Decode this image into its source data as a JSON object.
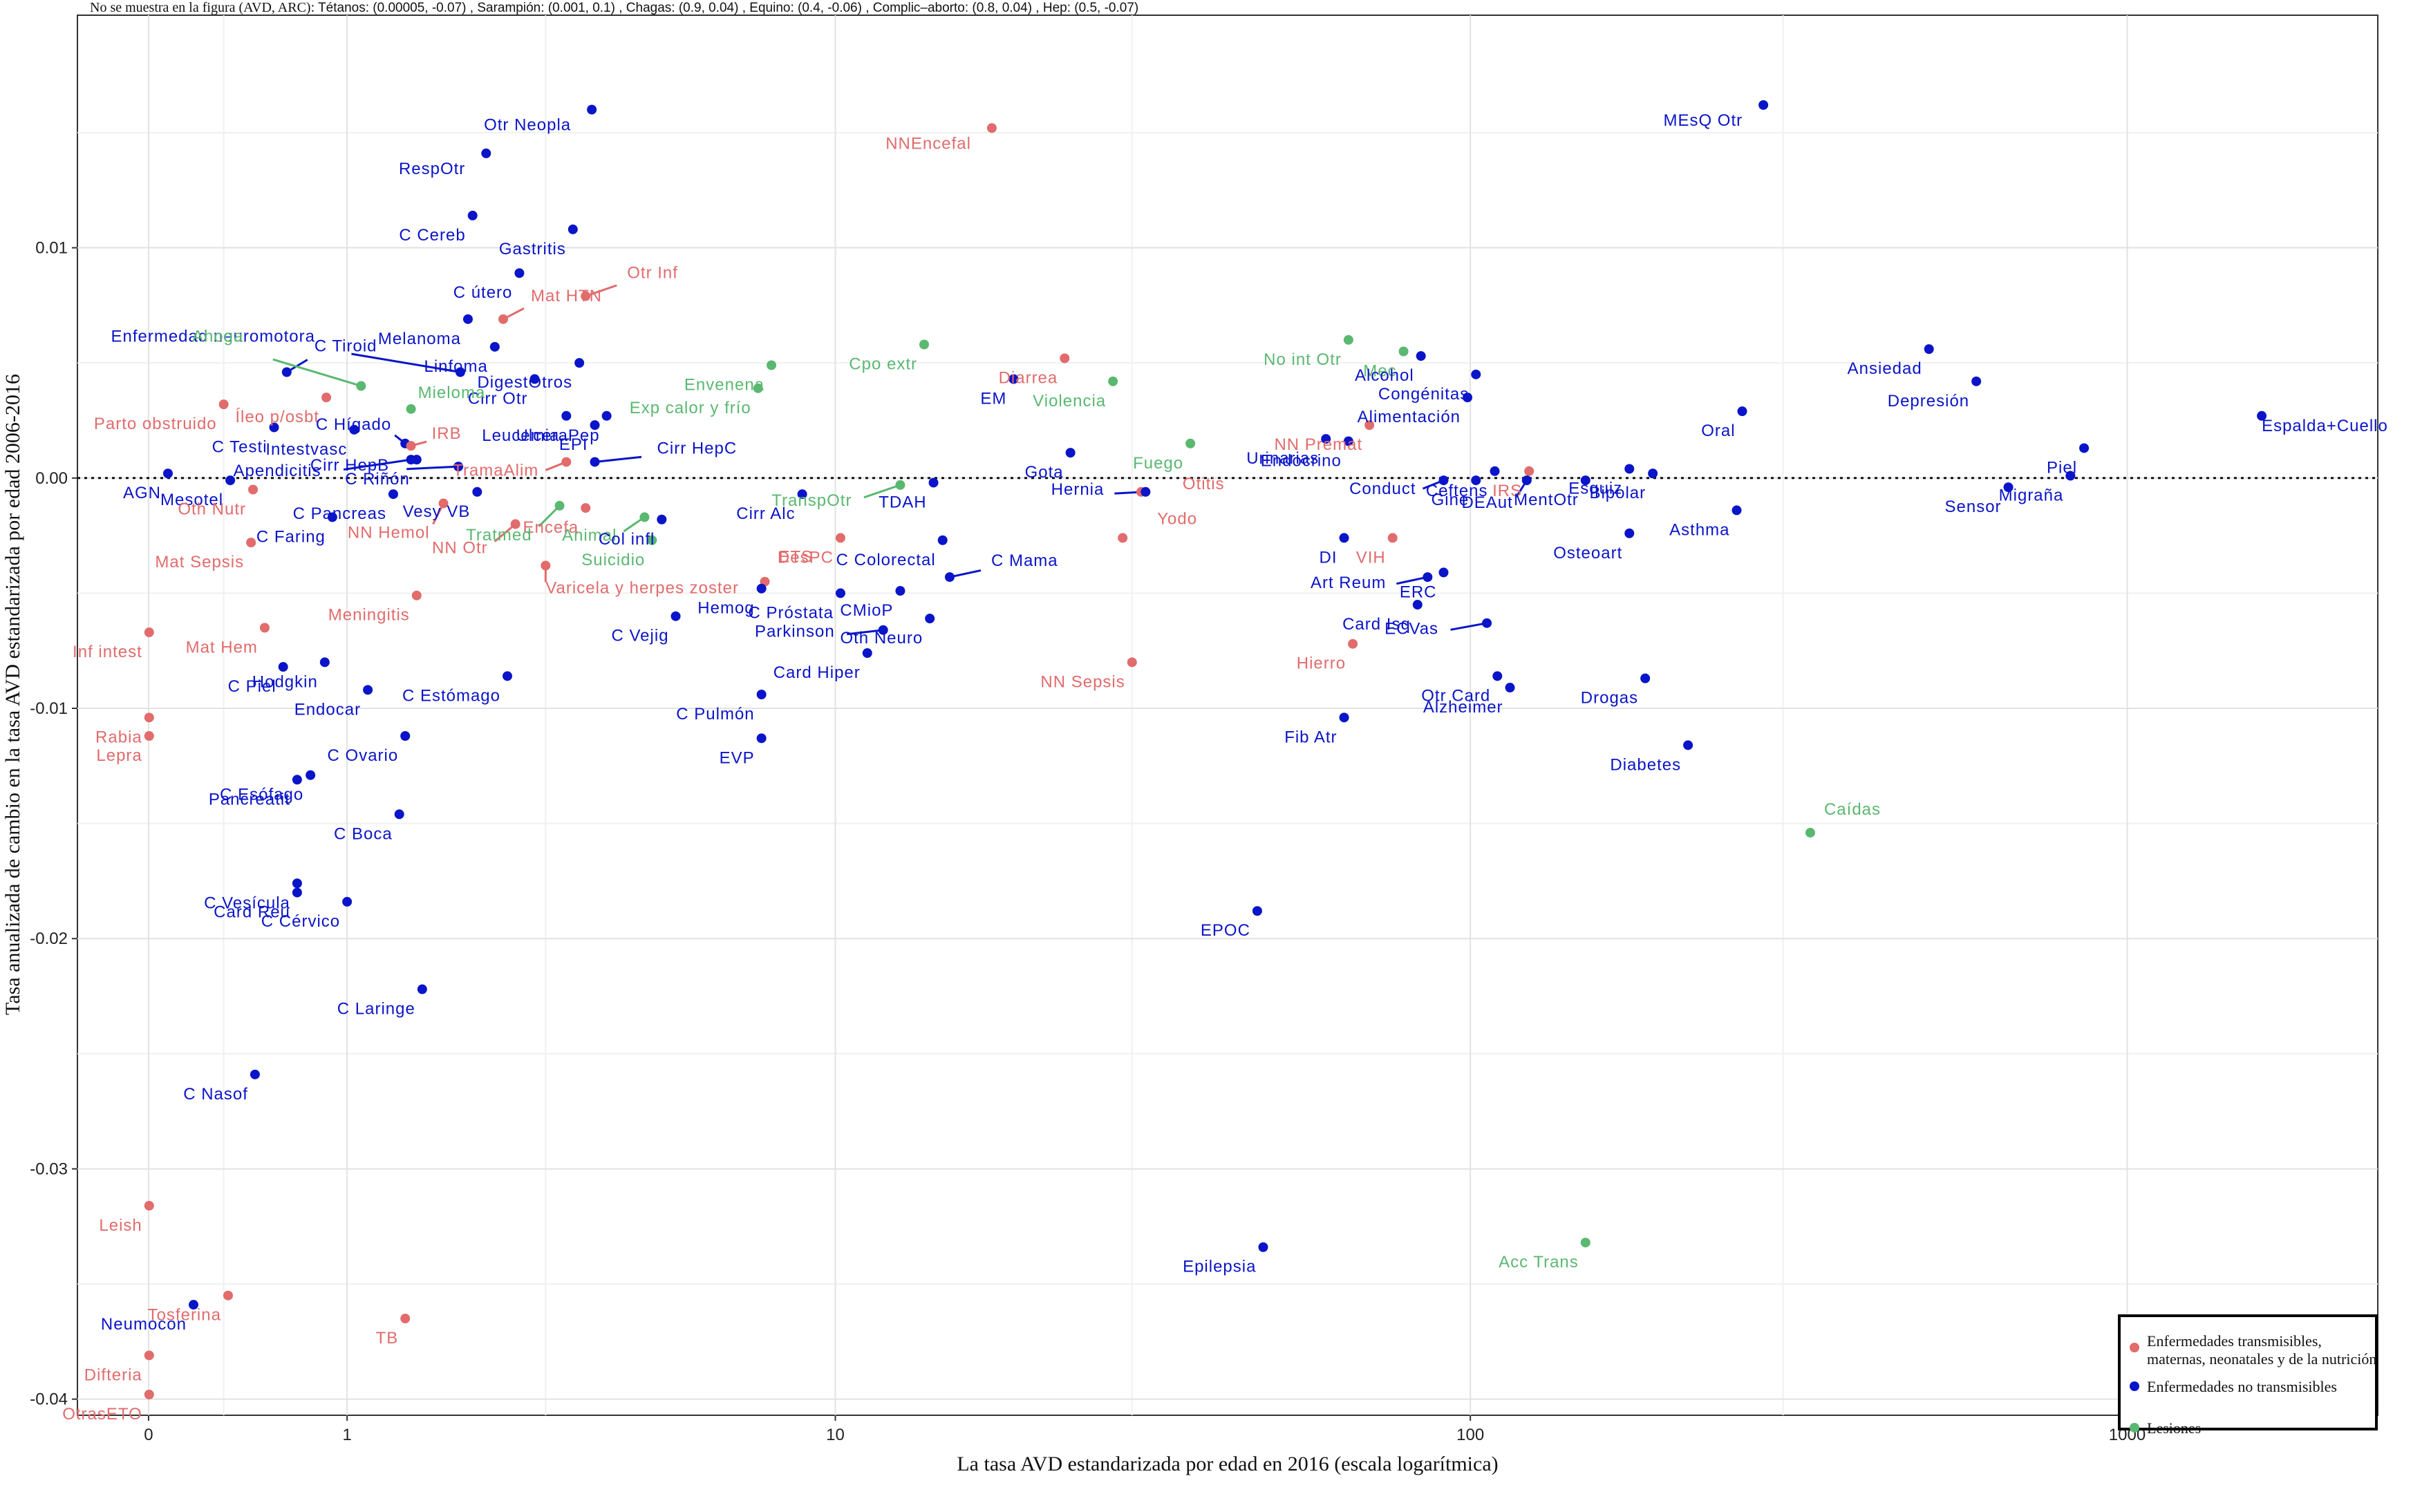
{
  "note": {
    "lead": "No se muestra en la figura (AVD, ARC):",
    "items": [
      "Tétanos: (0.00005, -0.07)",
      "Sarampión: (0.001, 0.1)",
      "Chagas: (0.9, 0.04)",
      "Equino: (0.4, -0.06)",
      "Complic–aborto: (0.8, 0.04)",
      "Hep: (0.5, -0.07)"
    ]
  },
  "colors": {
    "communicable": "#e26b6b",
    "noncommunicable": "#0a14c8",
    "injuries": "#5ab870"
  },
  "chart_data": {
    "type": "scatter",
    "xlabel": "La tasa AVD estandarizada por edad en 2016 (escala logarítmica)",
    "ylabel": "Tasa anualizada de cambio en la tasa AVD estandarizada por edad 2006-2016",
    "x_scale": "log1p",
    "x_ticks": [
      0,
      1,
      10,
      100,
      1000
    ],
    "x_tick_labels": [
      "0",
      "1",
      "10",
      "100",
      "1000"
    ],
    "xlim": [
      -0.22,
      2400
    ],
    "y_ticks": [
      -0.04,
      -0.03,
      -0.02,
      -0.01,
      0.0,
      0.01
    ],
    "y_tick_labels": [
      "-0.04",
      "-0.03",
      "-0.02",
      "-0.01",
      "0.00",
      "0.01"
    ],
    "ylim": [
      -0.0407,
      0.0201
    ],
    "reference_line": {
      "y": 0,
      "style": "dotted"
    },
    "legend": {
      "position": "bottom-right",
      "entries": [
        {
          "key": "communicable",
          "label_lines": [
            "Enfermedades transmisibles,",
            "maternas, neonatales y de la nutrición"
          ]
        },
        {
          "key": "noncommunicable",
          "label_lines": [
            "Enfermedades no transmisibles"
          ]
        },
        {
          "key": "injuries",
          "label_lines": [
            "Lesiones"
          ]
        }
      ]
    },
    "points": [
      {
        "label": "MEsQ Otr",
        "x": 280,
        "y": 0.0162,
        "g": "noncommunicable"
      },
      {
        "label": "Otr Neopla",
        "x": 3.7,
        "y": 0.016,
        "g": "noncommunicable"
      },
      {
        "label": "NNEncefal",
        "x": 18,
        "y": 0.0152,
        "g": "communicable"
      },
      {
        "label": "RespOtr",
        "x": 2.25,
        "y": 0.0141,
        "g": "noncommunicable"
      },
      {
        "label": "C Cereb",
        "x": 2.1,
        "y": 0.0114,
        "g": "noncommunicable"
      },
      {
        "label": "Gastritis",
        "x": 3.4,
        "y": 0.0108,
        "g": "noncommunicable"
      },
      {
        "label": "C útero",
        "x": 2.65,
        "y": 0.0089,
        "g": "noncommunicable"
      },
      {
        "label": "Otr Inf",
        "x": 3.6,
        "y": 0.0079,
        "g": "communicable"
      },
      {
        "label": "Mat HTN",
        "x": 2.45,
        "y": 0.0069,
        "g": "communicable"
      },
      {
        "label": "Melanoma",
        "x": 2.05,
        "y": 0.0069,
        "g": "noncommunicable"
      },
      {
        "label": "Linfoma",
        "x": 2.35,
        "y": 0.0057,
        "g": "noncommunicable"
      },
      {
        "label": "Cpo extr",
        "x": 14,
        "y": 0.0058,
        "g": "injuries"
      },
      {
        "label": "No int Otr",
        "x": 65,
        "y": 0.006,
        "g": "injuries"
      },
      {
        "label": "Mec",
        "x": 79,
        "y": 0.0055,
        "g": "injuries"
      },
      {
        "label": "Alcohol",
        "x": 84,
        "y": 0.0053,
        "g": "noncommunicable"
      },
      {
        "label": "Ansiedad",
        "x": 500,
        "y": 0.0056,
        "g": "noncommunicable"
      },
      {
        "label": "Diarrea",
        "x": 23.5,
        "y": 0.0052,
        "g": "communicable"
      },
      {
        "label": "DigestOtros",
        "x": 3.5,
        "y": 0.005,
        "g": "noncommunicable"
      },
      {
        "label": "Envenena",
        "x": 7.8,
        "y": 0.0049,
        "g": "injuries"
      },
      {
        "label": "C Tiroid",
        "x": 0.62,
        "y": 0.0046,
        "g": "noncommunicable"
      },
      {
        "label": "Enfermedad neuromotora",
        "x": 1.97,
        "y": 0.0046,
        "g": "noncommunicable"
      },
      {
        "label": "Cirr Otr",
        "x": 2.85,
        "y": 0.0043,
        "g": "noncommunicable"
      },
      {
        "label": "EM",
        "x": 19.5,
        "y": 0.0043,
        "g": "noncommunicable"
      },
      {
        "label": "Violencia",
        "x": 28,
        "y": 0.0042,
        "g": "injuries"
      },
      {
        "label": "Congénitas",
        "x": 102,
        "y": 0.0045,
        "g": "noncommunicable"
      },
      {
        "label": "Depresión",
        "x": 590,
        "y": 0.0042,
        "g": "noncommunicable"
      },
      {
        "label": "Exp calor y frío",
        "x": 7.4,
        "y": 0.0039,
        "g": "injuries"
      },
      {
        "label": "Ahoga",
        "x": 1.1,
        "y": 0.004,
        "g": "injuries"
      },
      {
        "label": "Íleo p/osbt",
        "x": 0.86,
        "y": 0.0035,
        "g": "communicable"
      },
      {
        "label": "Leucemia",
        "x": 3.3,
        "y": 0.0027,
        "g": "noncommunicable"
      },
      {
        "label": "Mieloma",
        "x": 1.5,
        "y": 0.003,
        "g": "injuries"
      },
      {
        "label": "Parto obstruido",
        "x": 0.3,
        "y": 0.0032,
        "g": "communicable"
      },
      {
        "label": "Alimentación",
        "x": 99,
        "y": 0.0035,
        "g": "noncommunicable"
      },
      {
        "label": "Oral",
        "x": 260,
        "y": 0.0029,
        "g": "noncommunicable"
      },
      {
        "label": "NN Premat",
        "x": 70,
        "y": 0.0023,
        "g": "communicable"
      },
      {
        "label": "Espalda+Cuello",
        "x": 1600,
        "y": 0.0027,
        "g": "noncommunicable"
      },
      {
        "label": "UlceraPep",
        "x": 3.95,
        "y": 0.0027,
        "g": "noncommunicable"
      },
      {
        "label": "EPI",
        "x": 3.75,
        "y": 0.0023,
        "g": "noncommunicable"
      },
      {
        "label": "C Testi",
        "x": 0.55,
        "y": 0.0022,
        "g": "noncommunicable"
      },
      {
        "label": "Intestvasc",
        "x": 1.05,
        "y": 0.0021,
        "g": "noncommunicable"
      },
      {
        "label": "C Hígado",
        "x": 1.45,
        "y": 0.0015,
        "g": "noncommunicable"
      },
      {
        "label": "IRB",
        "x": 1.5,
        "y": 0.0014,
        "g": "communicable"
      },
      {
        "label": "Urinarias",
        "x": 60,
        "y": 0.0017,
        "g": "noncommunicable"
      },
      {
        "label": "Endocrino",
        "x": 65,
        "y": 0.0016,
        "g": "noncommunicable"
      },
      {
        "label": "Gota",
        "x": 24,
        "y": 0.0011,
        "g": "noncommunicable"
      },
      {
        "label": "Fuego",
        "x": 37,
        "y": 0.0015,
        "g": "injuries"
      },
      {
        "label": "Piel",
        "x": 860,
        "y": 0.0013,
        "g": "noncommunicable"
      },
      {
        "label": "Migraña",
        "x": 820,
        "y": 0.0001,
        "g": "noncommunicable"
      },
      {
        "label": "Esquiz",
        "x": 175,
        "y": 0.0004,
        "g": "noncommunicable"
      },
      {
        "label": "Bipolar",
        "x": 190,
        "y": 0.0002,
        "g": "noncommunicable"
      },
      {
        "label": "IRS",
        "x": 123,
        "y": 0.0003,
        "g": "communicable"
      },
      {
        "label": "Ceftens",
        "x": 109,
        "y": 0.0003,
        "g": "noncommunicable"
      },
      {
        "label": "C Riñón",
        "x": 1.55,
        "y": 0.0008,
        "g": "noncommunicable"
      },
      {
        "label": "Cirr HepC",
        "x": 3.75,
        "y": 0.0007,
        "g": "noncommunicable"
      },
      {
        "label": "Mesotel",
        "x": 0.33,
        "y": -0.0001,
        "g": "noncommunicable"
      },
      {
        "label": "AGN",
        "x": 0.07,
        "y": 0.0002,
        "g": "noncommunicable"
      },
      {
        "label": "Apendicitis",
        "x": 1.5,
        "y": 0.0008,
        "g": "noncommunicable"
      },
      {
        "label": "Cirr HepB",
        "x": 1.95,
        "y": 0.0005,
        "g": "noncommunicable"
      },
      {
        "label": "TramaAlim",
        "x": 3.3,
        "y": 0.0007,
        "g": "communicable"
      },
      {
        "label": "Cirr Alc",
        "x": 8.8,
        "y": -0.0007,
        "g": "noncommunicable"
      },
      {
        "label": "TDAH",
        "x": 14.5,
        "y": -0.0002,
        "g": "noncommunicable"
      },
      {
        "label": "Otitis",
        "x": 31,
        "y": -0.0006,
        "g": "communicable"
      },
      {
        "label": "Hernia",
        "x": 31.5,
        "y": -0.0006,
        "g": "noncommunicable"
      },
      {
        "label": "Conduct",
        "x": 91,
        "y": -0.0001,
        "g": "noncommunicable"
      },
      {
        "label": "Gine",
        "x": 102,
        "y": -0.0001,
        "g": "noncommunicable"
      },
      {
        "label": "DEAut",
        "x": 122,
        "y": -0.0001,
        "g": "noncommunicable"
      },
      {
        "label": "MentOtr",
        "x": 150,
        "y": -0.0001,
        "g": "noncommunicable"
      },
      {
        "label": "Sensor",
        "x": 660,
        "y": -0.0004,
        "g": "noncommunicable"
      },
      {
        "label": "Asthma",
        "x": 255,
        "y": -0.0014,
        "g": "noncommunicable"
      },
      {
        "label": "Osteoart",
        "x": 175,
        "y": -0.0024,
        "g": "noncommunicable"
      },
      {
        "label": "Vesy VB",
        "x": 2.15,
        "y": -0.0006,
        "g": "noncommunicable"
      },
      {
        "label": "Encefa",
        "x": 3.6,
        "y": -0.0013,
        "g": "communicable"
      },
      {
        "label": "TranspOtr",
        "x": 12.8,
        "y": -0.0003,
        "g": "injuries"
      },
      {
        "label": "C Pancreas",
        "x": 1.35,
        "y": -0.0007,
        "g": "noncommunicable"
      },
      {
        "label": "Oth Nutr",
        "x": 0.44,
        "y": -0.0005,
        "g": "communicable"
      },
      {
        "label": "NN Hemol",
        "x": 1.8,
        "y": -0.0011,
        "g": "communicable"
      },
      {
        "label": "Tratmed",
        "x": 3.2,
        "y": -0.0012,
        "g": "injuries"
      },
      {
        "label": "Animal",
        "x": 4.65,
        "y": -0.0017,
        "g": "injuries"
      },
      {
        "label": "Col infl",
        "x": 5.0,
        "y": -0.0018,
        "g": "noncommunicable"
      },
      {
        "label": "C Colorectal",
        "x": 15,
        "y": -0.0027,
        "g": "noncommunicable"
      },
      {
        "label": "DI",
        "x": 64,
        "y": -0.0026,
        "g": "noncommunicable"
      },
      {
        "label": "VIH",
        "x": 76,
        "y": -0.0026,
        "g": "communicable"
      },
      {
        "label": "C Faring",
        "x": 0.9,
        "y": -0.0017,
        "g": "noncommunicable"
      },
      {
        "label": "Mat Sepsis",
        "x": 0.43,
        "y": -0.0028,
        "g": "communicable"
      },
      {
        "label": "NN Otr",
        "x": 2.6,
        "y": -0.002,
        "g": "communicable"
      },
      {
        "label": "Suicidio",
        "x": 4.8,
        "y": -0.0027,
        "g": "injuries"
      },
      {
        "label": "DesPC",
        "x": 10.2,
        "y": -0.0026,
        "g": "communicable"
      },
      {
        "label": "Yodo",
        "x": 29,
        "y": -0.0026,
        "g": "communicable"
      },
      {
        "label": "C Mama",
        "x": 15.4,
        "y": -0.0043,
        "g": "noncommunicable"
      },
      {
        "label": "ERC",
        "x": 91,
        "y": -0.0041,
        "g": "noncommunicable"
      },
      {
        "label": "Varicela y herpes zoster",
        "x": 3.0,
        "y": -0.0038,
        "g": "communicable"
      },
      {
        "label": "ETS",
        "x": 7.6,
        "y": -0.0045,
        "g": "communicable"
      },
      {
        "label": "CMioP",
        "x": 12.8,
        "y": -0.0049,
        "g": "noncommunicable"
      },
      {
        "label": "Hemog",
        "x": 7.5,
        "y": -0.0048,
        "g": "noncommunicable"
      },
      {
        "label": "C Próstata",
        "x": 10.2,
        "y": -0.005,
        "g": "noncommunicable"
      },
      {
        "label": "Art Reum",
        "x": 86,
        "y": -0.0043,
        "g": "noncommunicable"
      },
      {
        "label": "Oth Neuro",
        "x": 14.3,
        "y": -0.0061,
        "g": "noncommunicable"
      },
      {
        "label": "Card Isq",
        "x": 83,
        "y": -0.0055,
        "g": "noncommunicable"
      },
      {
        "label": "Meningitis",
        "x": 1.55,
        "y": -0.0051,
        "g": "communicable"
      },
      {
        "label": "Inf intest",
        "x": 0.002,
        "y": -0.0067,
        "g": "communicable"
      },
      {
        "label": "Mat Hem",
        "x": 0.5,
        "y": -0.0065,
        "g": "communicable"
      },
      {
        "label": "C Vejig",
        "x": 5.3,
        "y": -0.006,
        "g": "noncommunicable"
      },
      {
        "label": "Parkinson",
        "x": 12,
        "y": -0.0066,
        "g": "noncommunicable"
      },
      {
        "label": "ECVas",
        "x": 106,
        "y": -0.0063,
        "g": "noncommunicable"
      },
      {
        "label": "Card Hiper",
        "x": 11.3,
        "y": -0.0076,
        "g": "noncommunicable"
      },
      {
        "label": "Hodgkin",
        "x": 0.85,
        "y": -0.008,
        "g": "noncommunicable"
      },
      {
        "label": "C Piel",
        "x": 0.6,
        "y": -0.0082,
        "g": "noncommunicable"
      },
      {
        "label": "Hierro",
        "x": 66,
        "y": -0.0072,
        "g": "communicable"
      },
      {
        "label": "NN Sepsis",
        "x": 30,
        "y": -0.008,
        "g": "communicable"
      },
      {
        "label": "Otr Card",
        "x": 110,
        "y": -0.0086,
        "g": "noncommunicable"
      },
      {
        "label": "Endocar",
        "x": 1.15,
        "y": -0.0092,
        "g": "noncommunicable"
      },
      {
        "label": "C Estómago",
        "x": 2.5,
        "y": -0.0086,
        "g": "noncommunicable"
      },
      {
        "label": "Alzheimer",
        "x": 115,
        "y": -0.0091,
        "g": "noncommunicable"
      },
      {
        "label": "Drogas",
        "x": 185,
        "y": -0.0087,
        "g": "noncommunicable"
      },
      {
        "label": "C Pulmón",
        "x": 7.5,
        "y": -0.0094,
        "g": "noncommunicable"
      },
      {
        "label": "Rabia",
        "x": 0.002,
        "y": -0.0104,
        "g": "communicable"
      },
      {
        "label": "Lepra",
        "x": 0.002,
        "y": -0.0112,
        "g": "communicable"
      },
      {
        "label": "Fib Atr",
        "x": 64,
        "y": -0.0104,
        "g": "noncommunicable"
      },
      {
        "label": "C Ovario",
        "x": 1.45,
        "y": -0.0112,
        "g": "noncommunicable"
      },
      {
        "label": "EVP",
        "x": 7.5,
        "y": -0.0113,
        "g": "noncommunicable"
      },
      {
        "label": "Diabetes",
        "x": 215,
        "y": -0.0116,
        "g": "noncommunicable"
      },
      {
        "label": "C Esófago",
        "x": 0.76,
        "y": -0.0129,
        "g": "noncommunicable"
      },
      {
        "label": "Pancreatit",
        "x": 0.68,
        "y": -0.0131,
        "g": "noncommunicable"
      },
      {
        "label": "C Boca",
        "x": 1.4,
        "y": -0.0146,
        "g": "noncommunicable"
      },
      {
        "label": "Caídas",
        "x": 330,
        "y": -0.0154,
        "g": "injuries"
      },
      {
        "label": "C Vesícula",
        "x": 0.68,
        "y": -0.0176,
        "g": "noncommunicable"
      },
      {
        "label": "Card Reu",
        "x": 0.68,
        "y": -0.018,
        "g": "noncommunicable"
      },
      {
        "label": "C Cérvico",
        "x": 1.0,
        "y": -0.0184,
        "g": "noncommunicable"
      },
      {
        "label": "EPOC",
        "x": 47,
        "y": -0.0188,
        "g": "noncommunicable"
      },
      {
        "label": "C Laringe",
        "x": 1.6,
        "y": -0.0222,
        "g": "noncommunicable"
      },
      {
        "label": "C Nasof",
        "x": 0.45,
        "y": -0.0259,
        "g": "noncommunicable"
      },
      {
        "label": "Leish",
        "x": 0.002,
        "y": -0.0316,
        "g": "communicable"
      },
      {
        "label": "Acc Trans",
        "x": 150,
        "y": -0.0332,
        "g": "injuries"
      },
      {
        "label": "Epilepsia",
        "x": 48,
        "y": -0.0334,
        "g": "noncommunicable"
      },
      {
        "label": "Tosferina",
        "x": 0.32,
        "y": -0.0355,
        "g": "communicable"
      },
      {
        "label": "Neumocon",
        "x": 0.17,
        "y": -0.0359,
        "g": "noncommunicable"
      },
      {
        "label": "TB",
        "x": 1.45,
        "y": -0.0365,
        "g": "communicable"
      },
      {
        "label": "Difteria",
        "x": 0.002,
        "y": -0.0381,
        "g": "communicable"
      },
      {
        "label": "OtrasETO",
        "x": 0.002,
        "y": -0.0398,
        "g": "communicable"
      }
    ]
  }
}
